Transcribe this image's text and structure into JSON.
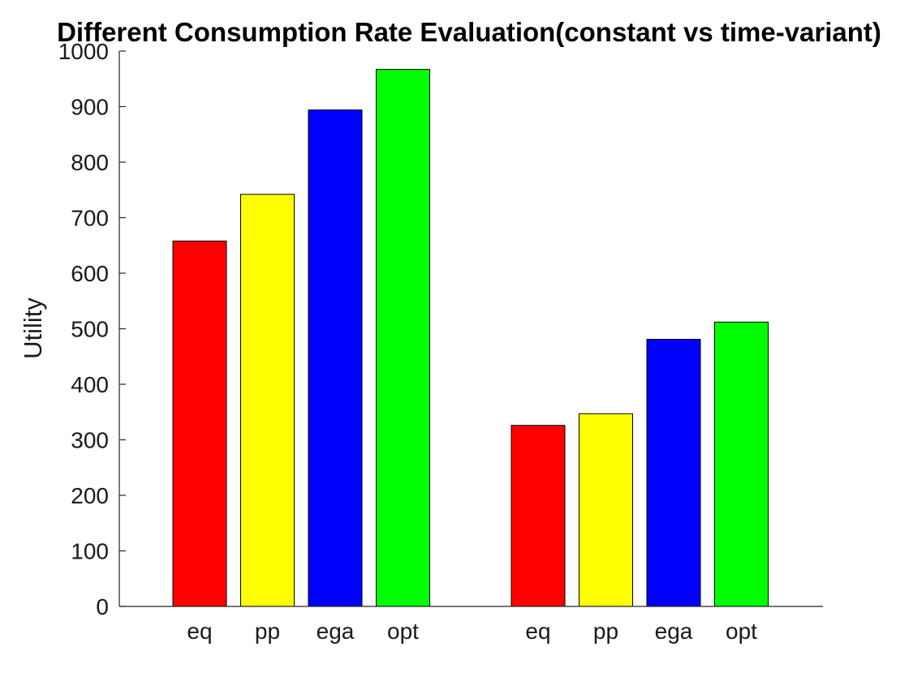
{
  "chart_data": {
    "type": "bar",
    "title": "Different Consumption Rate Evaluation(constant vs time-variant)",
    "xlabel": "",
    "ylabel": "Utility",
    "ylim": [
      0,
      1000
    ],
    "yticks": [
      0,
      100,
      200,
      300,
      400,
      500,
      600,
      700,
      800,
      900,
      1000
    ],
    "grid": false,
    "groups": [
      {
        "categories": [
          "eq",
          "pp",
          "ega",
          "opt"
        ],
        "values": [
          658,
          742,
          894,
          967
        ],
        "colors": [
          "#ff0000",
          "#ffff00",
          "#0000ff",
          "#00ff00"
        ]
      },
      {
        "categories": [
          "eq",
          "pp",
          "ega",
          "opt"
        ],
        "values": [
          326,
          347,
          481,
          512
        ],
        "colors": [
          "#ff0000",
          "#ffff00",
          "#0000ff",
          "#00ff00"
        ]
      }
    ]
  }
}
